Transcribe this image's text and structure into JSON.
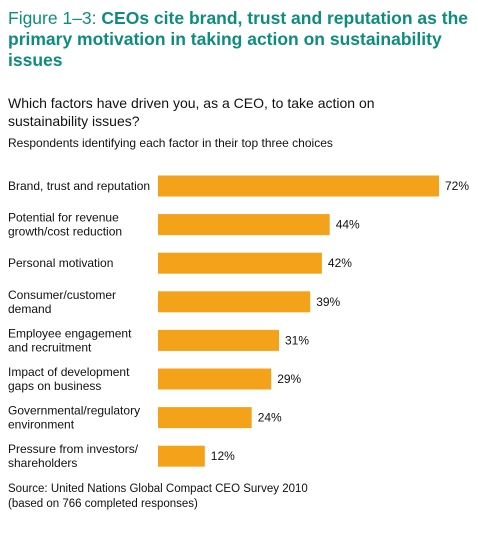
{
  "header": {
    "title_lead": "Figure 1–3:",
    "title_rest": "CEOs cite brand, trust and reputation as the primary motivation in taking action on sustainability issues"
  },
  "question": "Which factors have driven you, as a CEO, to take action on sustainability issues?",
  "subtitle": "Respondents identifying each factor in their top three choices",
  "source": {
    "line1": "Source: United Nations Global Compact CEO Survey 2010",
    "line2": "(based on 766 completed responses)"
  },
  "colors": {
    "title": "#0e8c7d",
    "bar": "#f5a21b"
  },
  "chart_data": {
    "type": "bar",
    "orientation": "horizontal",
    "categories": [
      [
        "Brand, trust and reputation"
      ],
      [
        "Potential for revenue",
        "growth/cost reduction"
      ],
      [
        "Personal motivation"
      ],
      [
        "Consumer/customer",
        "demand"
      ],
      [
        "Employee engagement",
        "and recruitment"
      ],
      [
        "Impact of development",
        "gaps on business"
      ],
      [
        "Governmental/regulatory",
        "environment"
      ],
      [
        "Pressure from investors/",
        "shareholders"
      ]
    ],
    "values": [
      72,
      44,
      42,
      39,
      31,
      29,
      24,
      12
    ],
    "labels": [
      "72%",
      "44%",
      "42%",
      "39%",
      "31%",
      "29%",
      "24%",
      "12%"
    ],
    "xlim": [
      0,
      72
    ],
    "grid": false
  }
}
